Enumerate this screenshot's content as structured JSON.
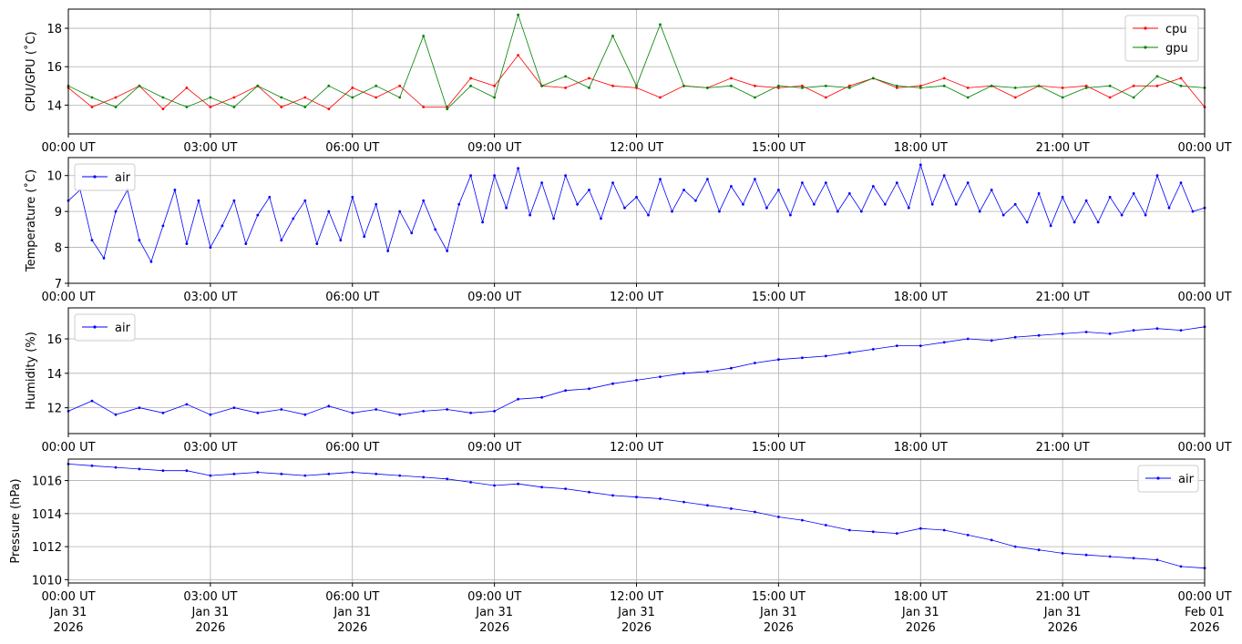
{
  "chart_data": [
    {
      "type": "line",
      "ylabel": "CPU/GPU (˚C)",
      "ylim": [
        12.5,
        19.0
      ],
      "yticks": [
        14,
        16,
        18
      ],
      "xlim": [
        "2026-01-31T00:00Z",
        "2026-02-01T00:00Z"
      ],
      "xtick_labels": [
        "00:00 UT",
        "03:00 UT",
        "06:00 UT",
        "09:00 UT",
        "12:00 UT",
        "15:00 UT",
        "18:00 UT",
        "21:00 UT",
        "00:00 UT"
      ],
      "grid": true,
      "legend": "top-right",
      "series": [
        {
          "name": "cpu",
          "color": "#ff0000",
          "x": [
            "00:00",
            "00:30",
            "01:00",
            "01:30",
            "02:00",
            "02:30",
            "03:00",
            "03:30",
            "04:00",
            "04:30",
            "05:00",
            "05:30",
            "06:00",
            "06:30",
            "07:00",
            "07:30",
            "08:00",
            "08:30",
            "09:00",
            "09:30",
            "10:00",
            "10:30",
            "11:00",
            "11:30",
            "12:00",
            "12:30",
            "13:00",
            "13:30",
            "14:00",
            "14:30",
            "15:00",
            "15:30",
            "16:00",
            "16:30",
            "17:00",
            "17:30",
            "18:00",
            "18:30",
            "19:00",
            "19:30",
            "20:00",
            "20:30",
            "21:00",
            "21:30",
            "22:00",
            "22:30",
            "23:00",
            "23:30",
            "24:00"
          ],
          "values": [
            14.9,
            13.9,
            14.4,
            15.0,
            13.8,
            14.9,
            13.9,
            14.4,
            15.0,
            13.9,
            14.4,
            13.8,
            14.9,
            14.4,
            15.0,
            13.9,
            13.9,
            15.4,
            15.0,
            16.6,
            15.0,
            14.9,
            15.4,
            15.0,
            14.9,
            14.4,
            15.0,
            14.9,
            15.4,
            15.0,
            14.9,
            15.0,
            14.4,
            15.0,
            15.4,
            14.9,
            15.0,
            15.4,
            14.9,
            15.0,
            14.4,
            15.0,
            14.9,
            15.0,
            14.4,
            15.0,
            15.0,
            15.4,
            13.9
          ]
        },
        {
          "name": "gpu",
          "color": "#008000",
          "x": [
            "00:00",
            "00:30",
            "01:00",
            "01:30",
            "02:00",
            "02:30",
            "03:00",
            "03:30",
            "04:00",
            "04:30",
            "05:00",
            "05:30",
            "06:00",
            "06:30",
            "07:00",
            "07:30",
            "08:00",
            "08:30",
            "09:00",
            "09:30",
            "10:00",
            "10:30",
            "11:00",
            "11:30",
            "12:00",
            "12:30",
            "13:00",
            "13:30",
            "14:00",
            "14:30",
            "15:00",
            "15:30",
            "16:00",
            "16:30",
            "17:00",
            "17:30",
            "18:00",
            "18:30",
            "19:00",
            "19:30",
            "20:00",
            "20:30",
            "21:00",
            "21:30",
            "22:00",
            "22:30",
            "23:00",
            "23:30",
            "24:00"
          ],
          "values": [
            15.0,
            14.4,
            13.9,
            15.0,
            14.4,
            13.9,
            14.4,
            13.9,
            15.0,
            14.4,
            13.9,
            15.0,
            14.4,
            15.0,
            14.4,
            17.6,
            13.8,
            15.0,
            14.4,
            18.7,
            15.0,
            15.5,
            14.9,
            17.6,
            15.0,
            18.2,
            15.0,
            14.9,
            15.0,
            14.4,
            15.0,
            14.9,
            15.0,
            14.9,
            15.4,
            15.0,
            14.9,
            15.0,
            14.4,
            15.0,
            14.9,
            15.0,
            14.4,
            14.9,
            15.0,
            14.4,
            15.5,
            15.0,
            14.9
          ]
        }
      ]
    },
    {
      "type": "line",
      "ylabel": "Temperature (˚C)",
      "ylim": [
        7.0,
        10.5
      ],
      "yticks": [
        7,
        8,
        9,
        10
      ],
      "xlim": [
        "2026-01-31T00:00Z",
        "2026-02-01T00:00Z"
      ],
      "xtick_labels": [
        "00:00 UT",
        "03:00 UT",
        "06:00 UT",
        "09:00 UT",
        "12:00 UT",
        "15:00 UT",
        "18:00 UT",
        "21:00 UT",
        "00:00 UT"
      ],
      "grid": true,
      "legend": "top-left",
      "series": [
        {
          "name": "air",
          "color": "#0000ff",
          "x": [
            "00:00",
            "00:15",
            "00:30",
            "00:45",
            "01:00",
            "01:15",
            "01:30",
            "01:45",
            "02:00",
            "02:15",
            "02:30",
            "02:45",
            "03:00",
            "03:15",
            "03:30",
            "03:45",
            "04:00",
            "04:15",
            "04:30",
            "04:45",
            "05:00",
            "05:15",
            "05:30",
            "05:45",
            "06:00",
            "06:15",
            "06:30",
            "06:45",
            "07:00",
            "07:15",
            "07:30",
            "07:45",
            "08:00",
            "08:15",
            "08:30",
            "08:45",
            "09:00",
            "09:15",
            "09:30",
            "09:45",
            "10:00",
            "10:15",
            "10:30",
            "10:45",
            "11:00",
            "11:15",
            "11:30",
            "11:45",
            "12:00",
            "12:15",
            "12:30",
            "12:45",
            "13:00",
            "13:15",
            "13:30",
            "13:45",
            "14:00",
            "14:15",
            "14:30",
            "14:45",
            "15:00",
            "15:15",
            "15:30",
            "15:45",
            "16:00",
            "16:15",
            "16:30",
            "16:45",
            "17:00",
            "17:15",
            "17:30",
            "17:45",
            "18:00",
            "18:15",
            "18:30",
            "18:45",
            "19:00",
            "19:15",
            "19:30",
            "19:45",
            "20:00",
            "20:15",
            "20:30",
            "20:45",
            "21:00",
            "21:15",
            "21:30",
            "21:45",
            "22:00",
            "22:15",
            "22:30",
            "22:45",
            "23:00",
            "23:15",
            "23:30",
            "23:45",
            "24:00"
          ],
          "values": [
            9.3,
            9.6,
            8.2,
            7.7,
            9.0,
            9.6,
            8.2,
            7.6,
            8.6,
            9.6,
            8.1,
            9.3,
            8.0,
            8.6,
            9.3,
            8.1,
            8.9,
            9.4,
            8.2,
            8.8,
            9.3,
            8.1,
            9.0,
            8.2,
            9.4,
            8.3,
            9.2,
            7.9,
            9.0,
            8.4,
            9.3,
            8.5,
            7.9,
            9.2,
            10.0,
            8.7,
            10.0,
            9.1,
            10.2,
            8.9,
            9.8,
            8.8,
            10.0,
            9.2,
            9.6,
            8.8,
            9.8,
            9.1,
            9.4,
            8.9,
            9.9,
            9.0,
            9.6,
            9.3,
            9.9,
            9.0,
            9.7,
            9.2,
            9.9,
            9.1,
            9.6,
            8.9,
            9.8,
            9.2,
            9.8,
            9.0,
            9.5,
            9.0,
            9.7,
            9.2,
            9.8,
            9.1,
            10.3,
            9.2,
            10.0,
            9.2,
            9.8,
            9.0,
            9.6,
            8.9,
            9.2,
            8.7,
            9.5,
            8.6,
            9.4,
            8.7,
            9.3,
            8.7,
            9.4,
            8.9,
            9.5,
            8.9,
            10.0,
            9.1,
            9.8,
            9.0,
            9.1
          ]
        }
      ]
    },
    {
      "type": "line",
      "ylabel": "Humidity (%)",
      "ylim": [
        10.5,
        17.8
      ],
      "yticks": [
        12,
        14,
        16
      ],
      "xlim": [
        "2026-01-31T00:00Z",
        "2026-02-01T00:00Z"
      ],
      "xtick_labels": [
        "00:00 UT",
        "03:00 UT",
        "06:00 UT",
        "09:00 UT",
        "12:00 UT",
        "15:00 UT",
        "18:00 UT",
        "21:00 UT",
        "00:00 UT"
      ],
      "grid": true,
      "legend": "top-left",
      "series": [
        {
          "name": "air",
          "color": "#0000ff",
          "x": [
            "00:00",
            "00:30",
            "01:00",
            "01:30",
            "02:00",
            "02:30",
            "03:00",
            "03:30",
            "04:00",
            "04:30",
            "05:00",
            "05:30",
            "06:00",
            "06:30",
            "07:00",
            "07:30",
            "08:00",
            "08:30",
            "09:00",
            "09:30",
            "10:00",
            "10:30",
            "11:00",
            "11:30",
            "12:00",
            "12:30",
            "13:00",
            "13:30",
            "14:00",
            "14:30",
            "15:00",
            "15:30",
            "16:00",
            "16:30",
            "17:00",
            "17:30",
            "18:00",
            "18:30",
            "19:00",
            "19:30",
            "20:00",
            "20:30",
            "21:00",
            "21:30",
            "22:00",
            "22:30",
            "23:00",
            "23:30",
            "24:00"
          ],
          "values": [
            11.8,
            12.4,
            11.6,
            12.0,
            11.7,
            12.2,
            11.6,
            12.0,
            11.7,
            11.9,
            11.6,
            12.1,
            11.7,
            11.9,
            11.6,
            11.8,
            11.9,
            11.7,
            11.8,
            12.5,
            12.6,
            13.0,
            13.1,
            13.4,
            13.6,
            13.8,
            14.0,
            14.1,
            14.3,
            14.6,
            14.8,
            14.9,
            15.0,
            15.2,
            15.4,
            15.6,
            15.6,
            15.8,
            16.0,
            15.9,
            16.1,
            16.2,
            16.3,
            16.4,
            16.3,
            16.5,
            16.6,
            16.5,
            16.7
          ]
        }
      ]
    },
    {
      "type": "line",
      "ylabel": "Pressure (hPa)",
      "ylim": [
        1009.8,
        1017.3
      ],
      "yticks": [
        1010,
        1012,
        1014,
        1016
      ],
      "xlim": [
        "2026-01-31T00:00Z",
        "2026-02-01T00:00Z"
      ],
      "xtick_labels": [
        "00:00 UT\nJan 31\n2026",
        "03:00 UT\nJan 31\n2026",
        "06:00 UT\nJan 31\n2026",
        "09:00 UT\nJan 31\n2026",
        "12:00 UT\nJan 31\n2026",
        "15:00 UT\nJan 31\n2026",
        "18:00 UT\nJan 31\n2026",
        "21:00 UT\nJan 31\n2026",
        "00:00 UT\nFeb 01\n2026"
      ],
      "grid": true,
      "legend": "top-right",
      "series": [
        {
          "name": "air",
          "color": "#0000ff",
          "x": [
            "00:00",
            "00:30",
            "01:00",
            "01:30",
            "02:00",
            "02:30",
            "03:00",
            "03:30",
            "04:00",
            "04:30",
            "05:00",
            "05:30",
            "06:00",
            "06:30",
            "07:00",
            "07:30",
            "08:00",
            "08:30",
            "09:00",
            "09:30",
            "10:00",
            "10:30",
            "11:00",
            "11:30",
            "12:00",
            "12:30",
            "13:00",
            "13:30",
            "14:00",
            "14:30",
            "15:00",
            "15:30",
            "16:00",
            "16:30",
            "17:00",
            "17:30",
            "18:00",
            "18:30",
            "19:00",
            "19:30",
            "20:00",
            "20:30",
            "21:00",
            "21:30",
            "22:00",
            "22:30",
            "23:00",
            "23:30",
            "24:00"
          ],
          "values": [
            1017.0,
            1016.9,
            1016.8,
            1016.7,
            1016.6,
            1016.6,
            1016.3,
            1016.4,
            1016.5,
            1016.4,
            1016.3,
            1016.4,
            1016.5,
            1016.4,
            1016.3,
            1016.2,
            1016.1,
            1015.9,
            1015.7,
            1015.8,
            1015.6,
            1015.5,
            1015.3,
            1015.1,
            1015.0,
            1014.9,
            1014.7,
            1014.5,
            1014.3,
            1014.1,
            1013.8,
            1013.6,
            1013.3,
            1013.0,
            1012.9,
            1012.8,
            1013.1,
            1013.0,
            1012.7,
            1012.4,
            1012.0,
            1011.8,
            1011.6,
            1011.5,
            1011.4,
            1011.3,
            1011.2,
            1010.8,
            1010.7
          ]
        }
      ]
    }
  ]
}
